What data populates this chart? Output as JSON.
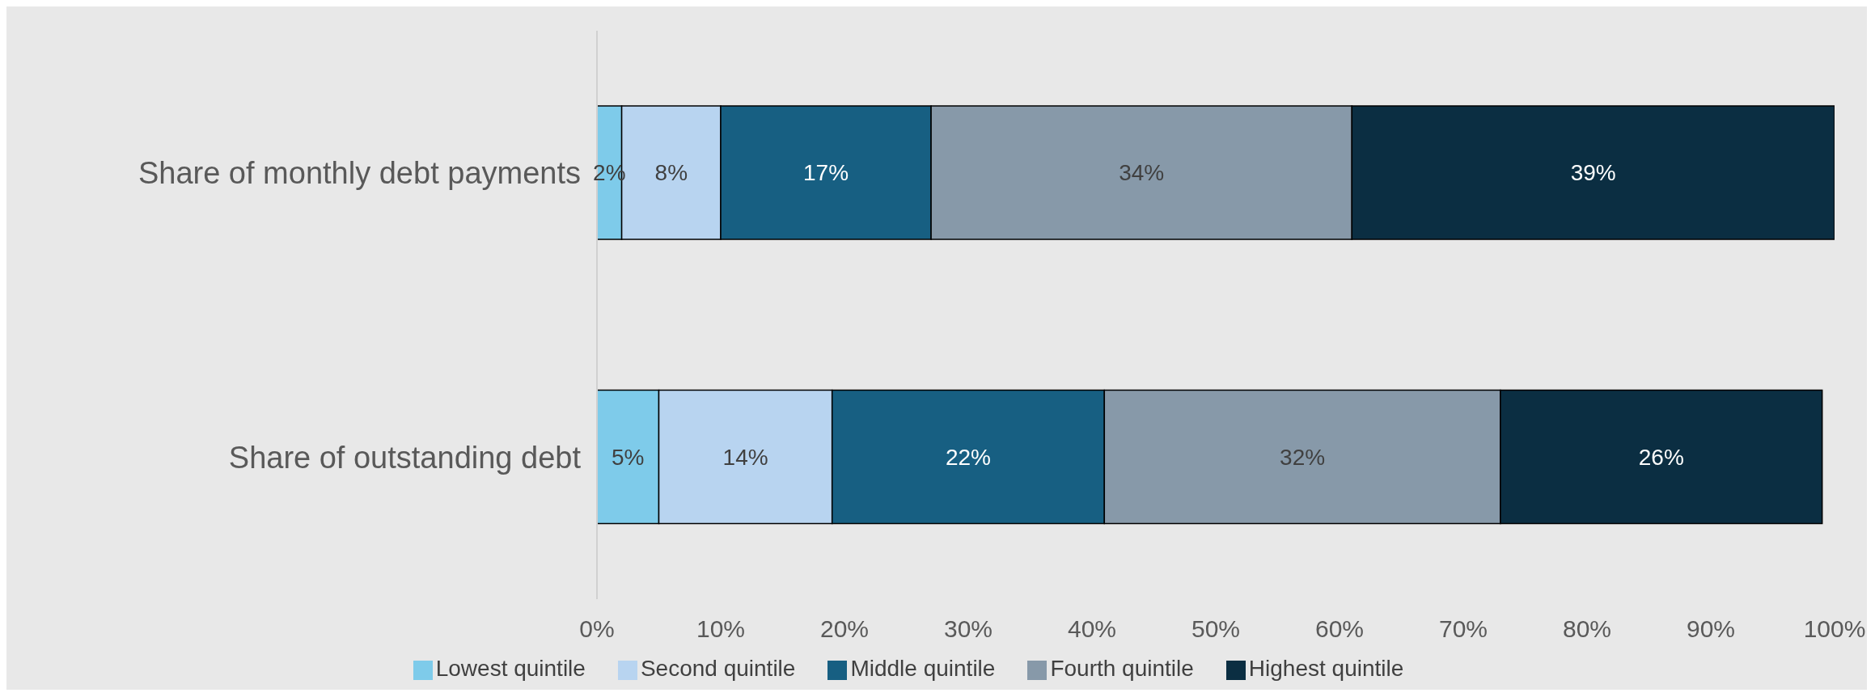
{
  "chart_data": {
    "type": "bar",
    "orientation": "horizontal",
    "stacked": true,
    "categories": [
      "Share of monthly debt payments",
      "Share of outstanding debt"
    ],
    "series": [
      {
        "name": "Lowest quintile",
        "color": "#7ecbea",
        "values": [
          2,
          5
        ],
        "value_labels": [
          "2%",
          "5%"
        ]
      },
      {
        "name": "Second quintile",
        "color": "#b8d4f0",
        "values": [
          8,
          14
        ],
        "value_labels": [
          "8%",
          "14%"
        ]
      },
      {
        "name": "Middle quintile",
        "color": "#175f82",
        "values": [
          17,
          22
        ],
        "value_labels": [
          "17%",
          "22%"
        ]
      },
      {
        "name": "Fourth quintile",
        "color": "#8799a9",
        "values": [
          34,
          32
        ],
        "value_labels": [
          "34%",
          "32%"
        ]
      },
      {
        "name": "Highest quintile",
        "color": "#0b2e42",
        "values": [
          39,
          26
        ],
        "value_labels": [
          "39%",
          "26%"
        ]
      }
    ],
    "xlim": [
      0,
      100
    ],
    "xticks": [
      {
        "value": 0,
        "label": "0%"
      },
      {
        "value": 10,
        "label": "10%"
      },
      {
        "value": 20,
        "label": "20%"
      },
      {
        "value": 30,
        "label": "30%"
      },
      {
        "value": 40,
        "label": "40%"
      },
      {
        "value": 50,
        "label": "50%"
      },
      {
        "value": 60,
        "label": "60%"
      },
      {
        "value": 70,
        "label": "70%"
      },
      {
        "value": 80,
        "label": "80%"
      },
      {
        "value": 90,
        "label": "90%"
      },
      {
        "value": 100,
        "label": "100%"
      }
    ],
    "grid": false,
    "legend": "bottom"
  }
}
